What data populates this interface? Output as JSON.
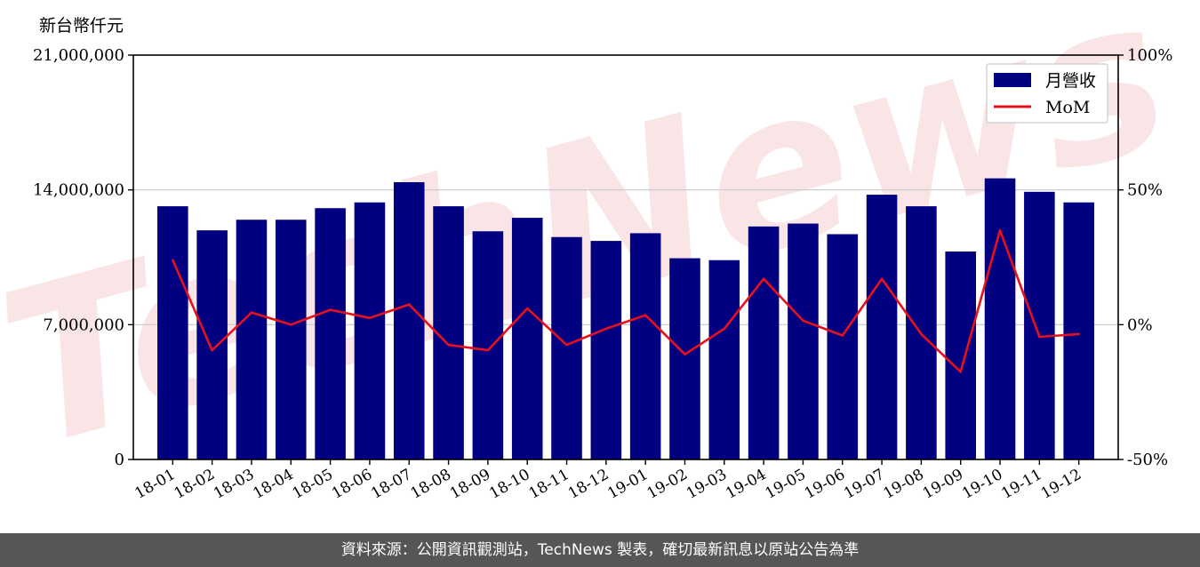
{
  "chart_data": {
    "type": "bar",
    "y_unit_label": "新台幣仟元",
    "categories": [
      "18-01",
      "18-02",
      "18-03",
      "18-04",
      "18-05",
      "18-06",
      "18-07",
      "18-08",
      "18-09",
      "18-10",
      "18-11",
      "18-12",
      "19-01",
      "19-02",
      "19-03",
      "19-04",
      "19-05",
      "19-06",
      "19-07",
      "19-08",
      "19-09",
      "19-10",
      "19-11",
      "19-12"
    ],
    "series": [
      {
        "name": "月營收",
        "type": "bar",
        "axis": "left",
        "color": "#000080",
        "values": [
          13150000,
          11900000,
          12450000,
          12450000,
          13050000,
          13350000,
          14400000,
          13150000,
          11850000,
          12550000,
          11550000,
          11350000,
          11750000,
          10450000,
          10350000,
          12100000,
          12250000,
          11700000,
          13750000,
          13150000,
          10800000,
          14600000,
          13900000,
          13350000
        ]
      },
      {
        "name": "MoM",
        "type": "line",
        "axis": "right",
        "color": "#e8101a",
        "values": [
          24.0,
          -9.5,
          4.5,
          0.0,
          5.5,
          2.5,
          7.5,
          -7.5,
          -9.5,
          6.0,
          -7.5,
          -1.5,
          3.5,
          -11.0,
          -1.5,
          17.0,
          1.5,
          -4.0,
          17.0,
          -3.5,
          -17.5,
          35.0,
          -4.5,
          -3.5
        ]
      }
    ],
    "y_left": {
      "min": 0,
      "max": 21000000,
      "ticks": [
        "0",
        "7,000,000",
        "14,000,000",
        "21,000,000"
      ]
    },
    "y_right": {
      "min": -50,
      "max": 100,
      "ticks": [
        "-50%",
        "0%",
        "50%",
        "100%"
      ]
    },
    "grid": "horizontal",
    "legend_position": "top-right"
  },
  "footer_text": "資料來源：公開資訊觀測站，TechNews 製表，確切最新訊息以原站公告為準",
  "watermark_text": "TechNews"
}
